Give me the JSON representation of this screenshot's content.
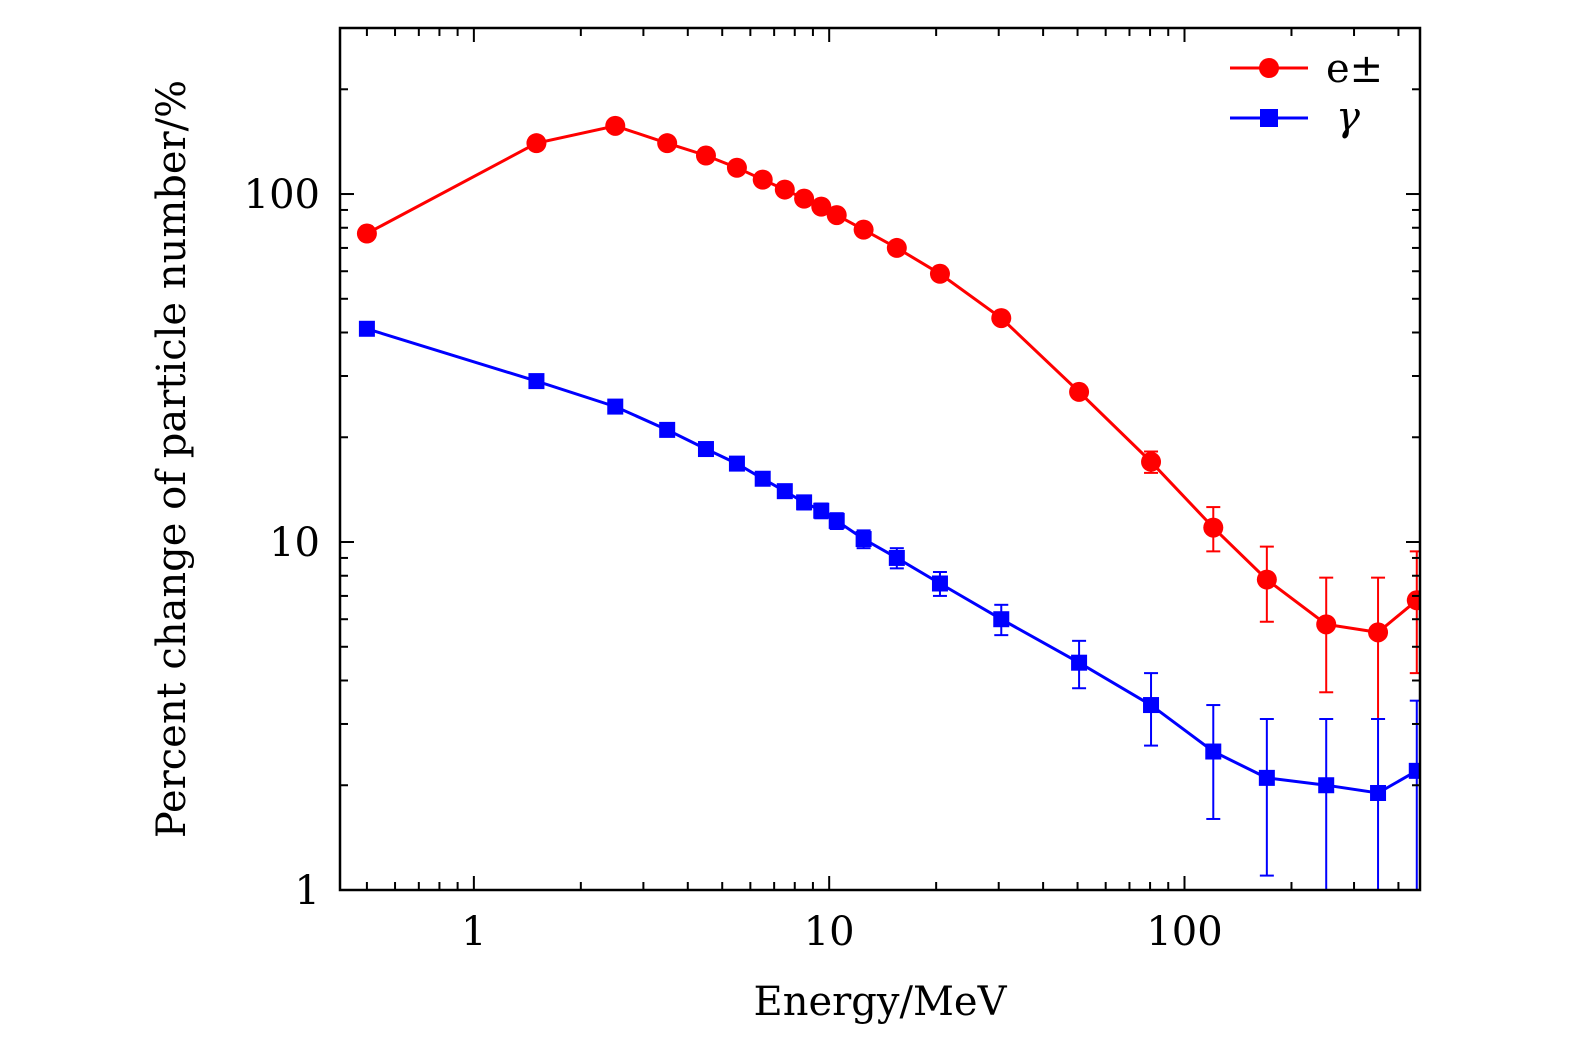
{
  "chart_data": {
    "type": "line",
    "title": "",
    "xlabel": "Energy/MeV",
    "ylabel": "Percent change of particle number/%",
    "xscale": "log",
    "yscale": "log",
    "xlim": [
      0.42,
      460
    ],
    "ylim": [
      1,
      300
    ],
    "x_ticks": [
      {
        "value": 1,
        "label": "1"
      },
      {
        "value": 10,
        "label": "10"
      },
      {
        "value": 100,
        "label": "100"
      }
    ],
    "y_ticks": [
      {
        "value": 1,
        "label": "1"
      },
      {
        "value": 10,
        "label": "10"
      },
      {
        "value": 100,
        "label": "100"
      }
    ],
    "legend_position": "top-right",
    "grid": false,
    "series": [
      {
        "name": "e±",
        "color": "#ff0000",
        "marker": "circle",
        "x": [
          0.5,
          1.5,
          2.5,
          3.5,
          4.5,
          5.5,
          6.5,
          7.5,
          8.5,
          9.5,
          10.5,
          12.5,
          15.5,
          20.5,
          30.5,
          50.5,
          80.5,
          120.5,
          170.5,
          250.5,
          350.5,
          450.5
        ],
        "values": [
          77,
          140,
          157,
          140,
          129,
          119,
          110,
          103,
          97,
          92,
          87,
          79,
          70,
          59,
          44,
          27,
          17,
          11,
          7.8,
          5.8,
          5.5,
          6.8
        ],
        "errors": [
          0.6,
          0.8,
          0.8,
          0.8,
          0.8,
          0.8,
          0.8,
          0.8,
          0.8,
          0.8,
          0.8,
          0.8,
          0.8,
          0.8,
          0.9,
          1.0,
          1.2,
          1.6,
          1.9,
          2.1,
          2.4,
          2.6
        ]
      },
      {
        "name": "γ",
        "color": "#0000ff",
        "marker": "square",
        "x": [
          0.5,
          1.5,
          2.5,
          3.5,
          4.5,
          5.5,
          6.5,
          7.5,
          8.5,
          9.5,
          10.5,
          12.5,
          15.5,
          20.5,
          30.5,
          50.5,
          80.5,
          120.5,
          170.5,
          250.5,
          350.5,
          450.5
        ],
        "values": [
          41,
          29,
          24.5,
          21,
          18.5,
          16.8,
          15.2,
          14,
          13,
          12.3,
          11.5,
          10.2,
          9,
          7.6,
          6,
          4.5,
          3.4,
          2.5,
          2.1,
          2,
          1.9,
          2.2
        ],
        "errors": [
          0.8,
          0.7,
          0.6,
          0.6,
          0.6,
          0.6,
          0.6,
          0.6,
          0.6,
          0.6,
          0.6,
          0.6,
          0.6,
          0.6,
          0.6,
          0.7,
          0.8,
          0.9,
          1.0,
          1.1,
          1.2,
          1.3
        ]
      }
    ]
  }
}
